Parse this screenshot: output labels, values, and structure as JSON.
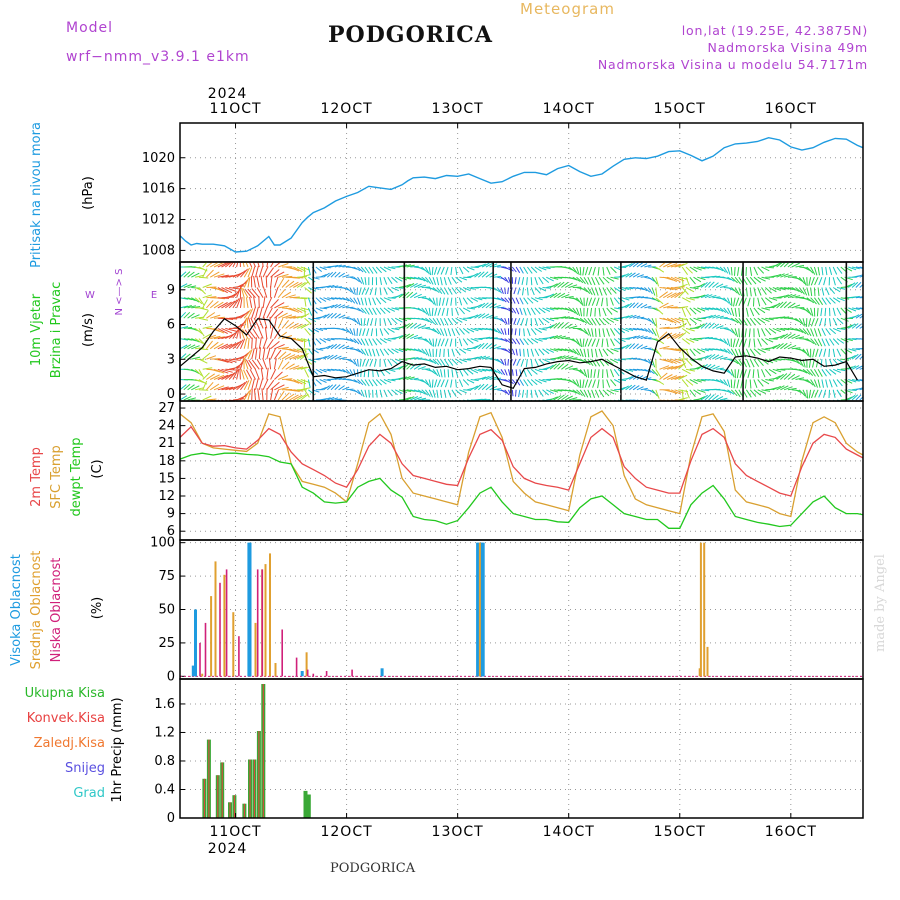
{
  "header": {
    "model_label": "Model",
    "model_name": "wrf−nmm_v3.9.1  e1km",
    "title": "PODGORICA",
    "chart_kind": "Meteogram",
    "lonlat": "lon,lat (19.25E, 42.3875N)",
    "elevation": "Nadmorska Visina 49m",
    "model_elevation": "Nadmorska Visina u modelu 54.7171m"
  },
  "footer": {
    "station": "PODGORICA",
    "credit": "made by Angel"
  },
  "colors": {
    "pressure": "#1e9be0",
    "temp2m": "#e8484a",
    "sfc_temp": "#d9a030",
    "dewpt": "#22c81e",
    "high_cloud": "#1e9be0",
    "mid_cloud": "#e0a030",
    "low_cloud": "#d0207a",
    "total_rain": "#3aa836",
    "conv_rain": "#e84040",
    "header_purple": "#b044d0",
    "meteogram_label": "#e8b860"
  },
  "chart_data": [
    {
      "id": "time_axis",
      "type": "line",
      "x_ticks": [
        "11OCT",
        "12OCT",
        "13OCT",
        "14OCT",
        "15OCT",
        "16OCT"
      ],
      "year": "2024",
      "x_range_days": [
        0.5,
        6.65
      ]
    },
    {
      "id": "pressure",
      "type": "line",
      "ylabel": "Pritisak na nivou mora",
      "unit": "(hPa)",
      "yticks": [
        1008,
        1012,
        1016,
        1020
      ],
      "ylim": [
        1006.5,
        1024.5
      ],
      "x_day": [
        0.5,
        0.55,
        0.6,
        0.65,
        0.7,
        0.8,
        0.9,
        1.0,
        1.1,
        1.2,
        1.3,
        1.35,
        1.4,
        1.5,
        1.6,
        1.65,
        1.7,
        1.8,
        1.9,
        2.0,
        2.1,
        2.2,
        2.3,
        2.4,
        2.5,
        2.55,
        2.6,
        2.7,
        2.8,
        2.9,
        3.0,
        3.1,
        3.2,
        3.3,
        3.4,
        3.5,
        3.6,
        3.7,
        3.8,
        3.9,
        4.0,
        4.1,
        4.2,
        4.3,
        4.4,
        4.5,
        4.6,
        4.7,
        4.8,
        4.9,
        5.0,
        5.1,
        5.2,
        5.3,
        5.4,
        5.5,
        5.6,
        5.7,
        5.8,
        5.9,
        6.0,
        6.1,
        6.2,
        6.3,
        6.4,
        6.5,
        6.6,
        6.65
      ],
      "values": [
        1009.9,
        1009.2,
        1008.7,
        1008.9,
        1008.8,
        1008.8,
        1008.6,
        1007.8,
        1007.9,
        1008.6,
        1009.8,
        1008.7,
        1008.7,
        1009.6,
        1011.6,
        1012.3,
        1012.9,
        1013.5,
        1014.4,
        1015.0,
        1015.5,
        1016.3,
        1016.1,
        1015.9,
        1016.5,
        1017.0,
        1017.4,
        1017.5,
        1017.3,
        1017.7,
        1017.6,
        1017.9,
        1017.3,
        1016.7,
        1016.9,
        1017.6,
        1018.1,
        1018.1,
        1017.8,
        1018.6,
        1019.0,
        1018.2,
        1017.6,
        1017.9,
        1018.9,
        1019.8,
        1020.0,
        1019.9,
        1020.2,
        1020.8,
        1020.9,
        1020.3,
        1019.6,
        1020.2,
        1021.3,
        1021.8,
        1021.9,
        1022.1,
        1022.6,
        1022.3,
        1021.4,
        1021.0,
        1021.3,
        1022.0,
        1022.5,
        1022.4,
        1021.6,
        1021.3
      ]
    },
    {
      "id": "wind",
      "type": "line",
      "ylabel_1": "10m Vjetar",
      "ylabel_2": "Brzina i Pravac",
      "unit": "(m/s)",
      "compass_ns": "N <—> S",
      "compass_w": "W",
      "compass_e": "E",
      "yticks": [
        0,
        3,
        6,
        9
      ],
      "ylim": [
        -0.6,
        11.4
      ],
      "x_day": [
        0.5,
        0.6,
        0.7,
        0.8,
        0.9,
        1.0,
        1.1,
        1.2,
        1.3,
        1.4,
        1.5,
        1.6,
        1.7,
        1.8,
        1.9,
        2.0,
        2.1,
        2.2,
        2.3,
        2.4,
        2.5,
        2.6,
        2.7,
        2.8,
        2.9,
        3.0,
        3.1,
        3.2,
        3.3,
        3.4,
        3.5,
        3.6,
        3.7,
        3.8,
        3.9,
        4.0,
        4.1,
        4.2,
        4.3,
        4.4,
        4.5,
        4.6,
        4.7,
        4.8,
        4.9,
        5.0,
        5.1,
        5.2,
        5.3,
        5.4,
        5.5,
        5.6,
        5.7,
        5.8,
        5.9,
        6.0,
        6.1,
        6.2,
        6.3,
        6.4,
        6.5,
        6.6
      ],
      "speed": [
        2.4,
        3.2,
        4.0,
        5.4,
        6.5,
        5.9,
        5.1,
        6.5,
        6.4,
        5.0,
        4.8,
        3.9,
        1.5,
        1.6,
        1.4,
        1.5,
        1.8,
        2.1,
        2.0,
        2.2,
        2.8,
        2.5,
        2.6,
        2.3,
        2.4,
        2.1,
        2.2,
        2.4,
        2.3,
        0.8,
        0.5,
        2.2,
        2.3,
        2.6,
        2.8,
        2.9,
        2.7,
        2.8,
        3.0,
        2.5,
        2.0,
        1.5,
        1.2,
        4.5,
        5.2,
        4.0,
        3.1,
        2.4,
        2.0,
        1.8,
        3.2,
        3.3,
        3.1,
        2.8,
        3.2,
        3.1,
        2.9,
        3.0,
        2.4,
        2.5,
        2.8,
        1.2
      ]
    },
    {
      "id": "temperature",
      "type": "line",
      "ylabel_1": "2m Temp",
      "ylabel_2": "SFC Temp",
      "ylabel_3": "dewpt Temp",
      "unit": "(C)",
      "yticks": [
        6,
        9,
        12,
        15,
        18,
        21,
        24,
        27
      ],
      "ylim": [
        4.5,
        28.2
      ],
      "x_day": [
        0.5,
        0.6,
        0.7,
        0.8,
        0.9,
        1.0,
        1.1,
        1.2,
        1.3,
        1.4,
        1.5,
        1.6,
        1.7,
        1.8,
        1.9,
        2.0,
        2.1,
        2.2,
        2.3,
        2.4,
        2.5,
        2.6,
        2.7,
        2.8,
        2.9,
        3.0,
        3.1,
        3.2,
        3.3,
        3.4,
        3.5,
        3.6,
        3.7,
        3.8,
        3.9,
        4.0,
        4.1,
        4.2,
        4.3,
        4.4,
        4.5,
        4.6,
        4.7,
        4.8,
        4.9,
        5.0,
        5.1,
        5.2,
        5.3,
        5.4,
        5.5,
        5.6,
        5.7,
        5.8,
        5.9,
        6.0,
        6.1,
        6.2,
        6.3,
        6.4,
        6.5,
        6.6,
        6.65
      ],
      "t2m": [
        22.0,
        23.8,
        21.0,
        20.5,
        20.6,
        20.2,
        20.0,
        21.5,
        23.5,
        22.5,
        19.5,
        17.5,
        16.5,
        15.5,
        14.2,
        13.5,
        16.5,
        20.5,
        22.5,
        21.0,
        17.5,
        15.5,
        15.0,
        14.5,
        14.0,
        13.8,
        18.5,
        22.5,
        23.3,
        21.5,
        17.0,
        15.0,
        14.2,
        13.8,
        13.5,
        13.0,
        17.5,
        22.0,
        23.5,
        22.0,
        17.0,
        15.0,
        13.5,
        13.0,
        12.5,
        12.5,
        18.0,
        22.5,
        23.5,
        22.0,
        17.5,
        15.5,
        14.5,
        13.5,
        12.5,
        12.0,
        17.0,
        21.0,
        22.5,
        22.0,
        20.0,
        19.0,
        18.5
      ],
      "sfc": [
        26.0,
        24.5,
        21.0,
        20.2,
        20.0,
        19.8,
        19.6,
        21.0,
        26.0,
        25.5,
        17.5,
        14.5,
        14.0,
        13.5,
        12.5,
        11.0,
        17.5,
        24.5,
        26.0,
        22.5,
        15.0,
        12.5,
        12.0,
        11.5,
        11.0,
        10.5,
        19.5,
        25.5,
        26.2,
        22.0,
        14.5,
        12.5,
        11.0,
        10.5,
        10.0,
        9.5,
        19.0,
        25.5,
        26.5,
        24.0,
        15.5,
        11.5,
        10.5,
        10.0,
        9.5,
        9.0,
        19.0,
        25.5,
        26.0,
        23.0,
        13.0,
        11.0,
        10.5,
        10.0,
        9.0,
        8.5,
        18.0,
        24.5,
        25.5,
        24.5,
        21.0,
        19.5,
        19.0
      ],
      "dewpt": [
        18.3,
        19.0,
        19.3,
        19.0,
        19.3,
        19.3,
        19.1,
        19.0,
        18.7,
        17.8,
        17.5,
        13.5,
        12.5,
        11.0,
        10.8,
        11.0,
        13.5,
        14.5,
        15.0,
        13.0,
        11.8,
        8.5,
        8.0,
        7.8,
        7.2,
        7.8,
        10.0,
        12.5,
        13.5,
        11.0,
        9.0,
        8.5,
        8.0,
        8.0,
        7.6,
        7.5,
        10.0,
        11.5,
        12.0,
        10.5,
        9.0,
        8.5,
        8.0,
        8.0,
        6.5,
        6.5,
        10.5,
        12.5,
        13.8,
        11.5,
        8.5,
        8.0,
        7.5,
        7.2,
        6.8,
        7.0,
        9.0,
        11.0,
        12.0,
        10.0,
        9.0,
        9.0,
        8.8
      ]
    },
    {
      "id": "clouds",
      "type": "bar",
      "ylabel_1": "Visoka Oblacnost",
      "ylabel_2": "Srednja Oblacnost",
      "ylabel_3": "Niska Oblacnost",
      "unit": "(%)",
      "yticks": [
        0,
        25,
        50,
        75,
        100
      ],
      "ylim": [
        -2,
        102
      ],
      "high": [
        [
          0.62,
          8
        ],
        [
          0.64,
          50
        ],
        [
          1.12,
          100
        ],
        [
          1.13,
          100
        ],
        [
          1.6,
          4
        ],
        [
          2.32,
          6
        ],
        [
          3.18,
          100
        ],
        [
          3.19,
          100
        ],
        [
          3.21,
          100
        ],
        [
          3.22,
          100
        ],
        [
          3.23,
          100
        ]
      ],
      "mid": [
        [
          0.7,
          2
        ],
        [
          0.78,
          60
        ],
        [
          0.82,
          86
        ],
        [
          0.9,
          76
        ],
        [
          0.98,
          48
        ],
        [
          1.18,
          40
        ],
        [
          1.24,
          80
        ],
        [
          1.27,
          84
        ],
        [
          1.31,
          92
        ],
        [
          1.36,
          10
        ],
        [
          1.64,
          18
        ],
        [
          3.2,
          100
        ],
        [
          5.18,
          6
        ],
        [
          5.19,
          100
        ],
        [
          5.22,
          100
        ],
        [
          5.25,
          22
        ]
      ],
      "low": [
        [
          0.68,
          25
        ],
        [
          0.73,
          40
        ],
        [
          0.86,
          70
        ],
        [
          0.92,
          80
        ],
        [
          1.03,
          30
        ],
        [
          1.2,
          80
        ],
        [
          1.24,
          80
        ],
        [
          1.42,
          35
        ],
        [
          1.55,
          14
        ],
        [
          1.65,
          5
        ],
        [
          1.7,
          2
        ],
        [
          1.82,
          4
        ],
        [
          2.05,
          5
        ]
      ]
    },
    {
      "id": "precipitation",
      "type": "bar",
      "labels": [
        "Ukupna  Kisa",
        "Konvek.Kisa",
        "Zaledj.Kisa",
        "Snijeg",
        "Grad"
      ],
      "label_colors": [
        "#2ab82a",
        "#e84040",
        "#f07830",
        "#5a50e0",
        "#30c8c8"
      ],
      "ylabel": "1hr Precip (mm)",
      "yticks": [
        0,
        0.4,
        0.8,
        1.2,
        1.6
      ],
      "ylim": [
        0,
        1.95
      ],
      "bars": [
        [
          0.72,
          0.55
        ],
        [
          0.76,
          1.1
        ],
        [
          0.84,
          0.6
        ],
        [
          0.88,
          0.78
        ],
        [
          0.95,
          0.22
        ],
        [
          0.99,
          0.32
        ],
        [
          1.08,
          0.2
        ],
        [
          1.13,
          0.82
        ],
        [
          1.17,
          0.82
        ],
        [
          1.21,
          1.22
        ],
        [
          1.25,
          1.88
        ],
        [
          1.63,
          0.38
        ],
        [
          1.66,
          0.33
        ]
      ]
    }
  ]
}
